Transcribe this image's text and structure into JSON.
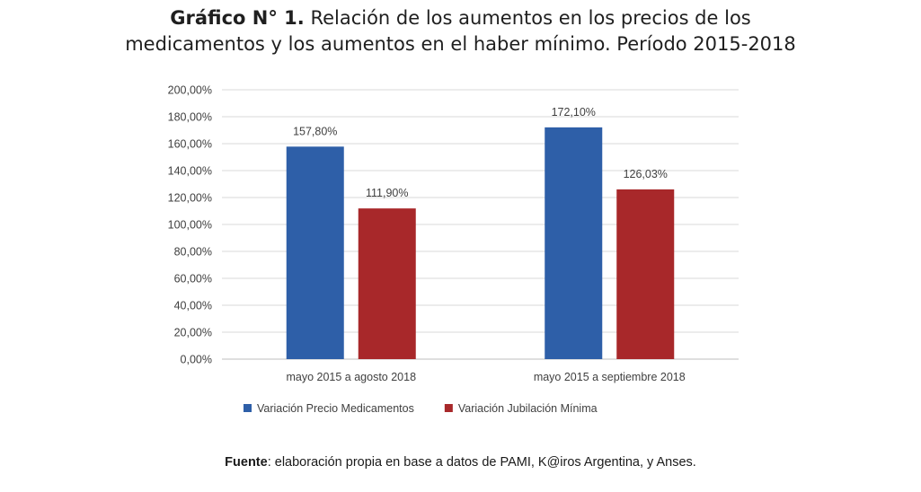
{
  "title": {
    "prefix": "Gráfico N° 1.",
    "line1": "Relación de los aumentos en los precios de los",
    "line2": "medicamentos y los aumentos en el haber mínimo. Período 2015-2018"
  },
  "source": {
    "label": "Fuente",
    "text": ": elaboración propia en base a datos de PAMI, K@iros Argentina, y Anses."
  },
  "chart_data": {
    "type": "bar",
    "categories": [
      "mayo 2015 a agosto 2018",
      "mayo 2015 a septiembre 2018"
    ],
    "series": [
      {
        "name": "Variación Precio Medicamentos",
        "values": [
          157.8,
          172.1
        ],
        "labels": [
          "157,80%",
          "172,10%"
        ],
        "color": "#2e5fa8"
      },
      {
        "name": "Variación Jubilación Mínima",
        "values": [
          111.9,
          126.03
        ],
        "labels": [
          "111,90%",
          "126,03%"
        ],
        "color": "#a8282a"
      }
    ],
    "ylim": [
      0,
      200
    ],
    "yticks": [
      0,
      20,
      40,
      60,
      80,
      100,
      120,
      140,
      160,
      180,
      200
    ],
    "ytick_labels": [
      "0,00%",
      "20,00%",
      "40,00%",
      "60,00%",
      "80,00%",
      "100,00%",
      "120,00%",
      "140,00%",
      "160,00%",
      "180,00%",
      "200,00%"
    ],
    "grid": true,
    "legend": "bottom-left"
  }
}
